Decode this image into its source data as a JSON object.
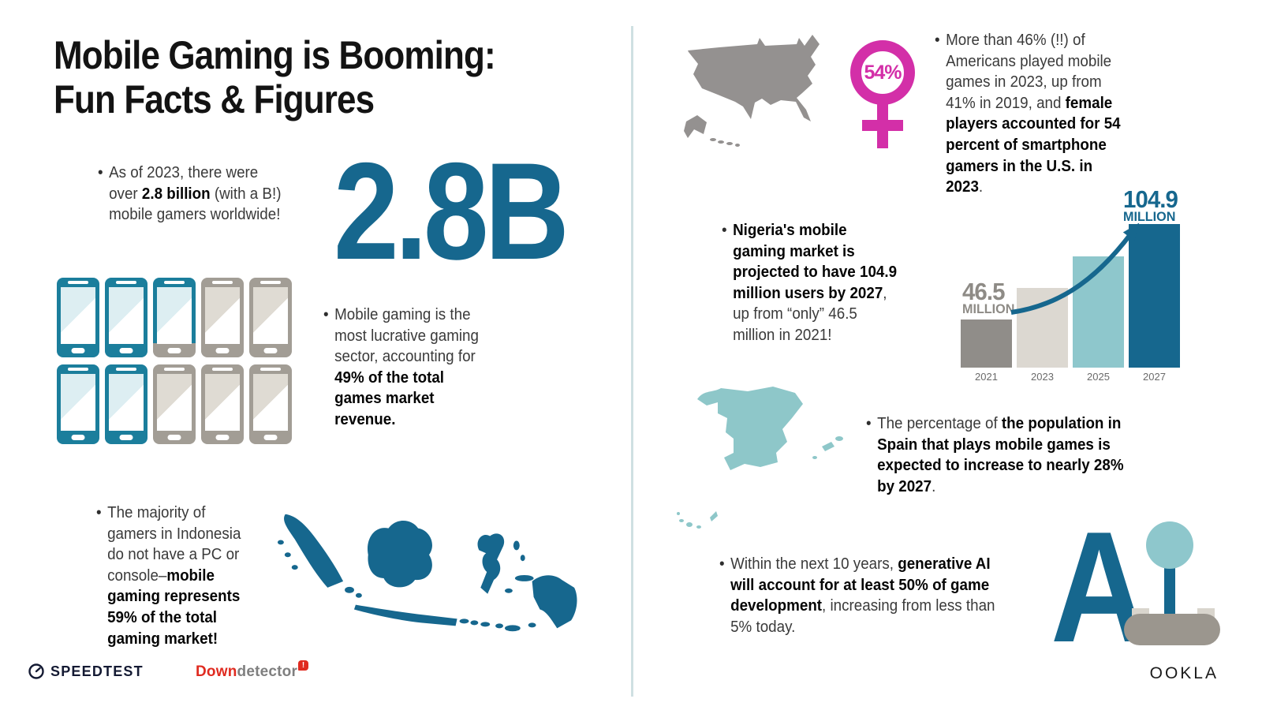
{
  "ui": {
    "bullet": "•"
  },
  "title": {
    "line1": "Mobile Gaming is Booming:",
    "line2": "Fun Facts & Figures"
  },
  "facts": {
    "gamers": {
      "pre": "As of 2023, there were over ",
      "bold": "2.8 billion",
      "post": " (with a B!) mobile gamers worldwide!",
      "big_stat": "2.8B"
    },
    "revenue": {
      "pre": "Mobile gaming is the most lucrative gaming sector, accounting for ",
      "bold": "49% of the total games market revenue.",
      "post": ""
    },
    "indonesia": {
      "pre": "The majority of gamers in Indonesia do not have a PC or console–",
      "bold": "mobile gaming represents 59% of the total gaming market!",
      "post": ""
    },
    "usa": {
      "pre": "More than 46% (!!) of Americans played mobile games in 2023, up from 41% in 2019, and ",
      "bold": "female players accounted for 54 percent of smartphone gamers in the U.S. in 2023",
      "post": ".",
      "badge": "54%"
    },
    "nigeria": {
      "pre": "",
      "bold": "Nigeria's mobile gaming market is projected to have 104.9 million users by 2027",
      "post": ", up from “only” 46.5 million in 2021!"
    },
    "spain": {
      "pre": "The percentage of ",
      "bold": "the population in Spain that plays mobile games is expected to increase to nearly 28% by 2027",
      "post": "."
    },
    "ai": {
      "pre": "Within the next 10 years, ",
      "bold": "generative AI will account for at least 50% of game development",
      "post": ", increasing from less than 5% today.",
      "letter": "A"
    }
  },
  "chart_data": {
    "type": "bar",
    "categories": [
      "2021",
      "2023",
      "2025",
      "2027"
    ],
    "values": [
      46.5,
      66,
      85,
      104.9
    ],
    "unit": "million users",
    "annotations": {
      "start": {
        "number": "46.5",
        "unit": "MILLION"
      },
      "end": {
        "number": "104.9",
        "unit": "MILLION"
      }
    },
    "bar_colors": [
      "#908d89",
      "#dcd8d1",
      "#8ec7cc",
      "#16678e"
    ],
    "gridlines": false,
    "legend": false,
    "ylim": [
      0,
      110
    ]
  },
  "phone_grid": {
    "phones": [
      "teal",
      "teal",
      "partial",
      "gray",
      "gray",
      "teal",
      "teal",
      "gray",
      "gray",
      "gray"
    ],
    "depicts": "49% of total games market revenue"
  },
  "footer": {
    "speedtest": "SPEEDTEST",
    "downdetector_red": "Down",
    "downdetector_gray": "detector",
    "downdetector_badge": "!",
    "ookla": "OOKLA"
  },
  "colors": {
    "dark_teal": "#16678e",
    "phone_teal": "#1b7e9c",
    "light_teal": "#8ec7cc",
    "beige": "#dcd8d1",
    "gray": "#908d89",
    "magenta": "#d32fa8",
    "divider": "#cfe0e2"
  }
}
